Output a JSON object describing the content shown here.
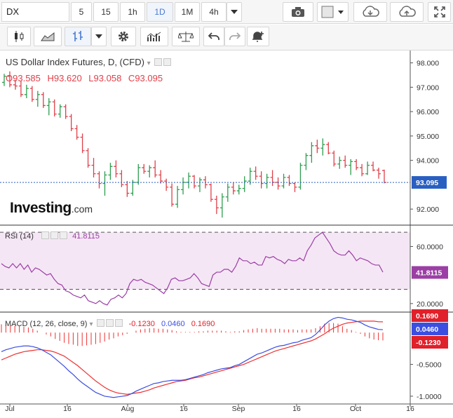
{
  "toolbar": {
    "symbol": "DX",
    "timeframes": [
      {
        "label": "5",
        "active": false
      },
      {
        "label": "15",
        "active": false
      },
      {
        "label": "1h",
        "active": false
      },
      {
        "label": "1D",
        "active": true
      },
      {
        "label": "1M",
        "active": false
      },
      {
        "label": "4h",
        "active": false
      }
    ],
    "icons_row1": [
      "dropdown-icon",
      "camera-icon",
      "chart-style-icon",
      "cloud-download-icon",
      "cloud-upload-icon",
      "fullscreen-icon"
    ],
    "icons_row2": [
      "candles-icon",
      "area-icon",
      "bars-icon",
      "dropdown-icon",
      "settings-icon",
      "indicators-icon",
      "compare-icon",
      "undo-icon",
      "redo-icon",
      "alert-icon"
    ]
  },
  "colors": {
    "up": "#2e9e4f",
    "down": "#e0404a",
    "rsi": "#9b3fa5",
    "macd": "#3b4ee0",
    "signal": "#ee3030",
    "hist": "#ee3030",
    "last_price": "#2a5fc2",
    "rsi_band": "#f5e6f5"
  },
  "chart_data": [
    {
      "type": "ohlc",
      "title": "US Dollar Index Futures, D, (CFD)",
      "ohlc_label": {
        "O": "93.585",
        "H": "93.620",
        "L": "93.058",
        "C": "93.095"
      },
      "last_value": "93.095",
      "x_ticks": [
        "Jul",
        "16",
        "Aug",
        "16",
        "Sep",
        "16",
        "Oct",
        "16"
      ],
      "y_ticks": [
        "98.000",
        "97.000",
        "96.000",
        "95.000",
        "94.000",
        "92.000"
      ],
      "ylim": [
        91.4,
        98.45
      ],
      "bars": [
        [
          97.2,
          97.55,
          97.05,
          97.45
        ],
        [
          97.45,
          97.65,
          97.0,
          97.1
        ],
        [
          97.1,
          97.3,
          96.9,
          97.05
        ],
        [
          97.05,
          97.25,
          96.6,
          96.7
        ],
        [
          96.7,
          97.1,
          96.55,
          96.95
        ],
        [
          96.95,
          97.05,
          96.4,
          96.5
        ],
        [
          96.5,
          96.85,
          96.2,
          96.7
        ],
        [
          96.7,
          96.8,
          96.15,
          96.25
        ],
        [
          96.25,
          96.55,
          95.85,
          96.4
        ],
        [
          96.4,
          96.5,
          95.8,
          95.9
        ],
        [
          95.9,
          96.3,
          95.75,
          96.2
        ],
        [
          96.2,
          96.3,
          95.7,
          95.8
        ],
        [
          95.8,
          95.9,
          95.2,
          95.3
        ],
        [
          95.3,
          95.45,
          94.85,
          94.95
        ],
        [
          94.95,
          95.1,
          94.3,
          94.4
        ],
        [
          94.4,
          94.5,
          93.7,
          93.8
        ],
        [
          93.8,
          94.1,
          93.3,
          93.45
        ],
        [
          93.45,
          93.55,
          92.85,
          93.05
        ],
        [
          93.05,
          93.55,
          92.55,
          93.4
        ],
        [
          93.4,
          93.9,
          93.2,
          93.75
        ],
        [
          93.75,
          94.0,
          93.3,
          93.45
        ],
        [
          93.45,
          93.6,
          92.9,
          93.0
        ],
        [
          93.0,
          93.15,
          92.5,
          92.65
        ],
        [
          92.65,
          93.2,
          92.55,
          93.1
        ],
        [
          93.1,
          93.85,
          93.0,
          93.7
        ],
        [
          93.7,
          93.85,
          93.45,
          93.55
        ],
        [
          93.55,
          93.8,
          93.3,
          93.7
        ],
        [
          93.7,
          94.0,
          93.3,
          93.4
        ],
        [
          93.4,
          93.6,
          93.05,
          93.15
        ],
        [
          93.15,
          93.25,
          92.75,
          92.9
        ],
        [
          92.9,
          93.05,
          92.1,
          92.2
        ],
        [
          92.2,
          92.95,
          92.05,
          92.8
        ],
        [
          92.8,
          93.3,
          92.6,
          93.1
        ],
        [
          93.1,
          93.5,
          92.85,
          93.35
        ],
        [
          93.35,
          93.4,
          92.85,
          92.95
        ],
        [
          92.95,
          93.3,
          92.7,
          93.2
        ],
        [
          93.2,
          93.35,
          92.85,
          93.0
        ],
        [
          93.0,
          93.05,
          92.3,
          92.4
        ],
        [
          92.4,
          92.55,
          91.8,
          92.05
        ],
        [
          92.05,
          92.65,
          91.65,
          92.5
        ],
        [
          92.5,
          93.05,
          92.3,
          92.9
        ],
        [
          92.9,
          93.1,
          92.6,
          92.75
        ],
        [
          92.75,
          93.0,
          92.6,
          92.85
        ],
        [
          92.85,
          93.35,
          92.7,
          93.15
        ],
        [
          93.15,
          93.7,
          93.0,
          93.55
        ],
        [
          93.55,
          93.75,
          93.2,
          93.35
        ],
        [
          93.35,
          93.55,
          92.85,
          93.05
        ],
        [
          93.05,
          93.45,
          92.85,
          93.3
        ],
        [
          93.3,
          93.6,
          92.95,
          93.1
        ],
        [
          93.1,
          93.3,
          92.8,
          92.95
        ],
        [
          92.95,
          93.45,
          92.85,
          93.3
        ],
        [
          93.3,
          93.4,
          92.95,
          93.05
        ],
        [
          93.05,
          93.1,
          92.7,
          92.9
        ],
        [
          92.9,
          93.9,
          92.8,
          93.8
        ],
        [
          93.8,
          94.3,
          93.6,
          94.2
        ],
        [
          94.2,
          94.75,
          93.9,
          94.6
        ],
        [
          94.6,
          94.85,
          94.3,
          94.5
        ],
        [
          94.5,
          94.9,
          94.2,
          94.65
        ],
        [
          94.65,
          94.75,
          94.25,
          94.3
        ],
        [
          94.3,
          94.4,
          93.75,
          93.85
        ],
        [
          93.85,
          94.15,
          93.65,
          94.0
        ],
        [
          94.0,
          94.2,
          93.7,
          93.8
        ],
        [
          93.8,
          94.05,
          93.4,
          93.95
        ],
        [
          93.95,
          94.05,
          93.6,
          93.7
        ],
        [
          93.7,
          93.85,
          93.35,
          93.45
        ],
        [
          93.45,
          93.95,
          93.4,
          93.8
        ],
        [
          93.8,
          93.95,
          93.55,
          93.6
        ],
        [
          93.6,
          93.7,
          93.25,
          93.45
        ],
        [
          93.585,
          93.62,
          93.058,
          93.095
        ]
      ]
    },
    {
      "type": "line",
      "name": "RSI (14)",
      "value_label": "41.8115",
      "bands": [
        70,
        30
      ],
      "ylim": [
        15,
        74
      ],
      "y_ticks": [
        "60.0000",
        "20.0000"
      ],
      "values": [
        48,
        46,
        45,
        48,
        45,
        48,
        44,
        47,
        42,
        45,
        44,
        42,
        40,
        41,
        37,
        34,
        33,
        29,
        28,
        26,
        25,
        24,
        26,
        22,
        21,
        20,
        22,
        20,
        19,
        23,
        24,
        26,
        24,
        27,
        34,
        37,
        36,
        37,
        35,
        34,
        33,
        31,
        29,
        27,
        31,
        37,
        38,
        36,
        36,
        37,
        38,
        41,
        38,
        34,
        33,
        32,
        40,
        42,
        42,
        44,
        44,
        42,
        46,
        52,
        50,
        50,
        48,
        49,
        47,
        47,
        53,
        52,
        53,
        51,
        50,
        48,
        51,
        50,
        50,
        52,
        50,
        57,
        61,
        66,
        68,
        70,
        66,
        62,
        57,
        55,
        54,
        54,
        57,
        54,
        50,
        52,
        51,
        50,
        48,
        47,
        47,
        42
      ]
    },
    {
      "type": "macd",
      "name": "MACD (12, 26, close, 9)",
      "values_label": {
        "hist": "-0.1230",
        "macd": "0.0460",
        "signal": "0.1690"
      },
      "ylim": [
        -1.1,
        0.3
      ],
      "y_ticks": [
        "-0.5000",
        "-1.0000"
      ],
      "macd": [
        -0.3,
        -0.27,
        -0.25,
        -0.23,
        -0.22,
        -0.21,
        -0.21,
        -0.22,
        -0.24,
        -0.27,
        -0.31,
        -0.35,
        -0.41,
        -0.47,
        -0.53,
        -0.6,
        -0.66,
        -0.73,
        -0.79,
        -0.84,
        -0.89,
        -0.94,
        -0.97,
        -1.0,
        -1.01,
        -1.02,
        -1.01,
        -1.0,
        -0.99,
        -0.96,
        -0.92,
        -0.89,
        -0.86,
        -0.83,
        -0.8,
        -0.79,
        -0.77,
        -0.76,
        -0.75,
        -0.75,
        -0.75,
        -0.74,
        -0.72,
        -0.7,
        -0.68,
        -0.66,
        -0.63,
        -0.61,
        -0.59,
        -0.57,
        -0.56,
        -0.55,
        -0.52,
        -0.5,
        -0.46,
        -0.42,
        -0.38,
        -0.34,
        -0.32,
        -0.29,
        -0.26,
        -0.23,
        -0.21,
        -0.2,
        -0.18,
        -0.16,
        -0.15,
        -0.12,
        -0.1,
        -0.08,
        -0.03,
        0.04,
        0.12,
        0.18,
        0.22,
        0.24,
        0.23,
        0.21,
        0.2,
        0.18,
        0.16,
        0.12,
        0.09,
        0.07,
        0.05,
        0.046
      ],
      "signal": [
        -0.43,
        -0.4,
        -0.37,
        -0.34,
        -0.32,
        -0.3,
        -0.29,
        -0.28,
        -0.27,
        -0.27,
        -0.28,
        -0.29,
        -0.31,
        -0.34,
        -0.37,
        -0.42,
        -0.47,
        -0.52,
        -0.58,
        -0.64,
        -0.7,
        -0.76,
        -0.81,
        -0.86,
        -0.9,
        -0.93,
        -0.95,
        -0.96,
        -0.97,
        -0.96,
        -0.95,
        -0.94,
        -0.92,
        -0.9,
        -0.87,
        -0.85,
        -0.83,
        -0.81,
        -0.79,
        -0.77,
        -0.76,
        -0.75,
        -0.73,
        -0.71,
        -0.7,
        -0.68,
        -0.66,
        -0.64,
        -0.62,
        -0.6,
        -0.58,
        -0.56,
        -0.54,
        -0.52,
        -0.5,
        -0.47,
        -0.44,
        -0.41,
        -0.38,
        -0.35,
        -0.32,
        -0.29,
        -0.27,
        -0.25,
        -0.23,
        -0.21,
        -0.19,
        -0.17,
        -0.15,
        -0.13,
        -0.1,
        -0.06,
        -0.02,
        0.03,
        0.07,
        0.1,
        0.13,
        0.15,
        0.16,
        0.17,
        0.18,
        0.18,
        0.18,
        0.18,
        0.17,
        0.169
      ],
      "histogram": [
        0.13,
        0.13,
        0.12,
        0.11,
        0.1,
        0.09,
        0.08,
        0.06,
        0.03,
        0.0,
        -0.03,
        -0.06,
        -0.1,
        -0.13,
        -0.16,
        -0.18,
        -0.19,
        -0.21,
        -0.21,
        -0.2,
        -0.19,
        -0.18,
        -0.16,
        -0.14,
        -0.11,
        -0.09,
        -0.06,
        -0.04,
        -0.02,
        0.0,
        0.03,
        0.05,
        0.06,
        0.07,
        0.07,
        0.06,
        0.06,
        0.05,
        0.04,
        0.02,
        0.01,
        0.01,
        0.01,
        0.01,
        0.02,
        0.02,
        0.03,
        0.03,
        0.03,
        0.03,
        0.02,
        0.01,
        0.02,
        0.02,
        0.04,
        0.05,
        0.06,
        0.07,
        0.06,
        0.06,
        0.06,
        0.06,
        0.06,
        0.05,
        0.05,
        0.05,
        0.04,
        0.05,
        0.05,
        0.05,
        0.07,
        0.1,
        0.14,
        0.15,
        0.15,
        0.14,
        0.1,
        0.06,
        0.04,
        0.01,
        -0.02,
        -0.06,
        -0.09,
        -0.11,
        -0.12,
        -0.123
      ]
    }
  ]
}
